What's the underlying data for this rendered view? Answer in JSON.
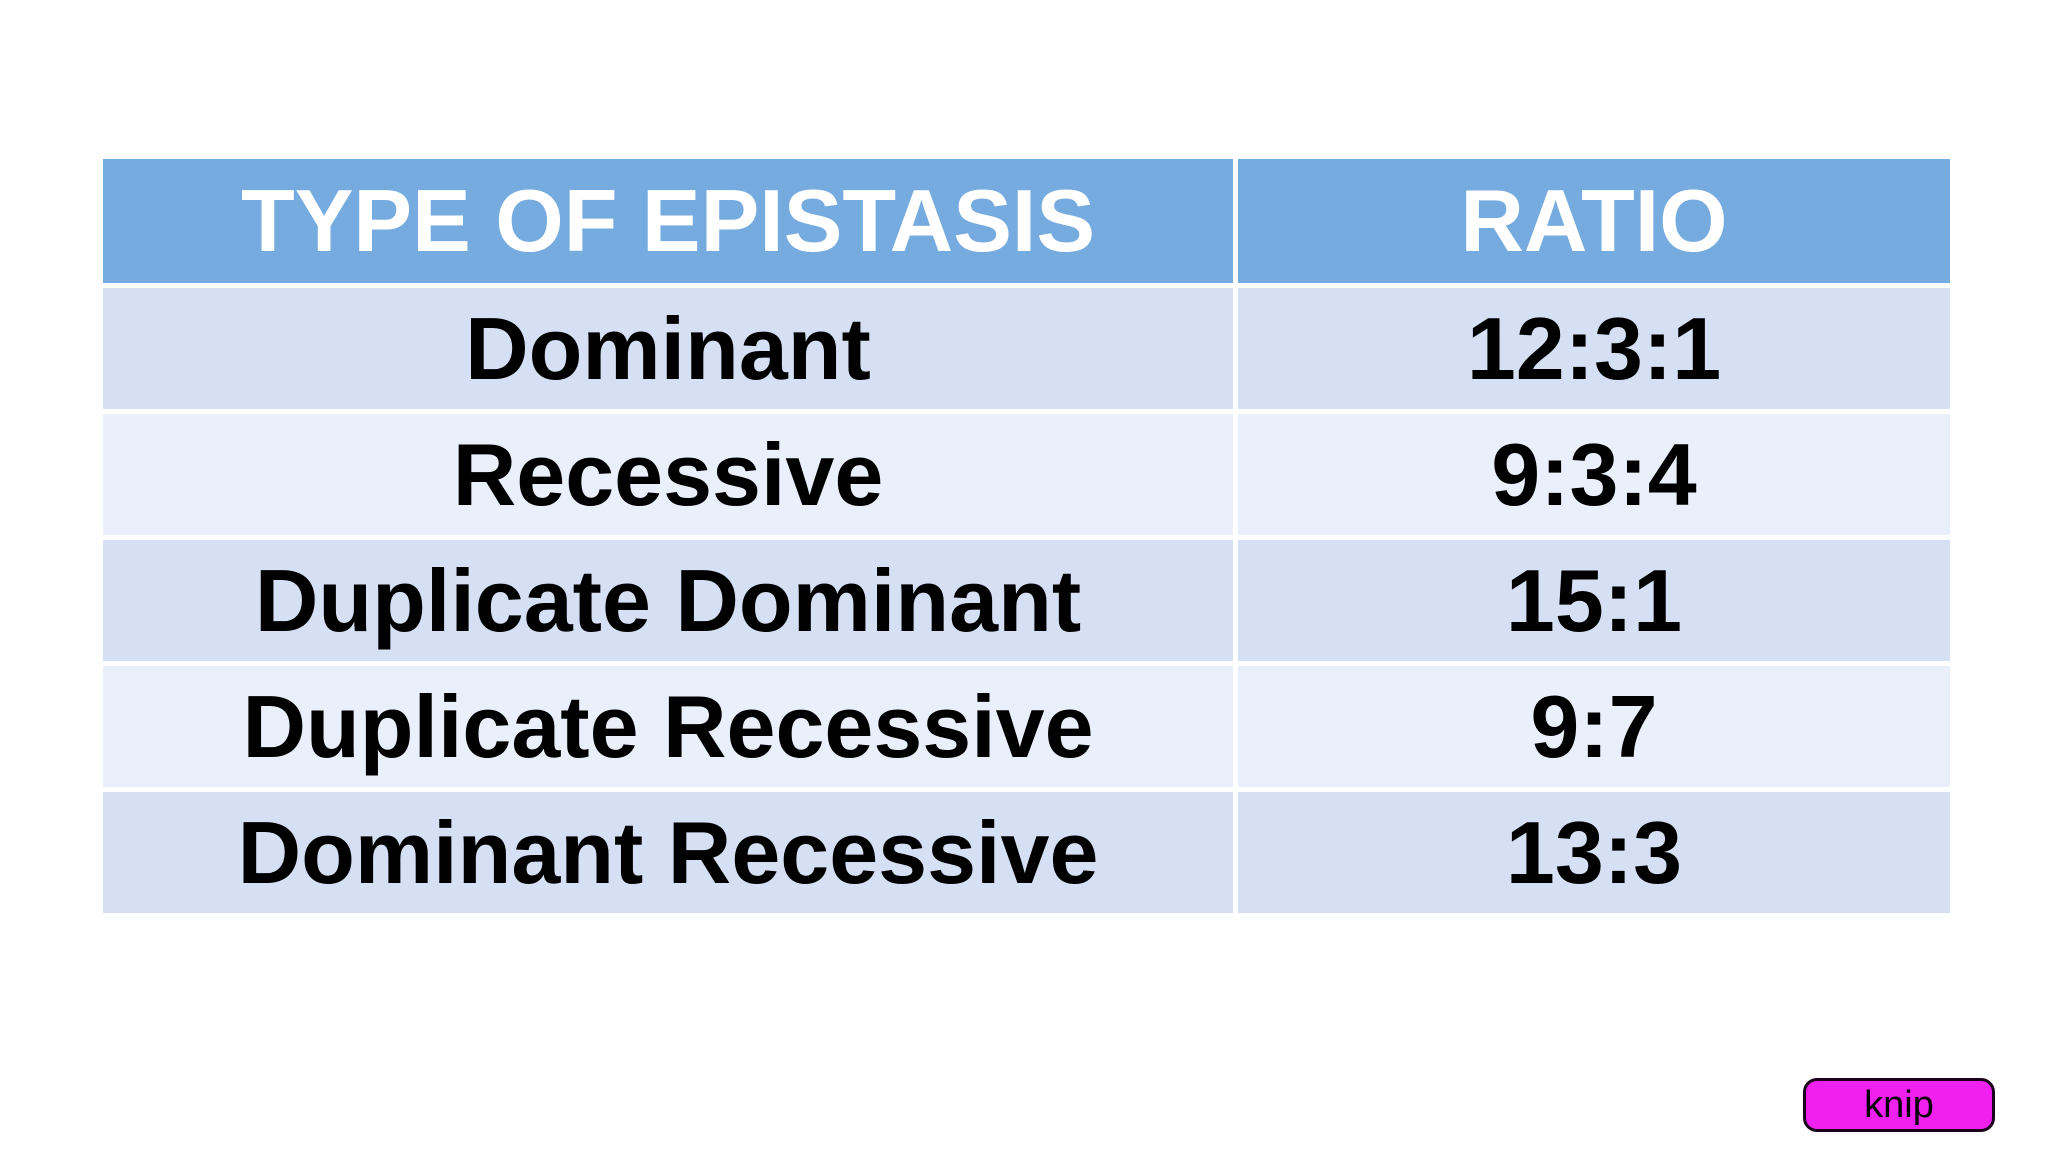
{
  "table": {
    "headers": {
      "type": "TYPE OF EPISTASIS",
      "ratio": "RATIO"
    },
    "rows": [
      {
        "type": "Dominant",
        "ratio": "12:3:1"
      },
      {
        "type": "Recessive",
        "ratio": "9:3:4"
      },
      {
        "type": "Duplicate Dominant",
        "ratio": "15:1"
      },
      {
        "type": "Duplicate Recessive",
        "ratio": "9:7"
      },
      {
        "type": "Dominant Recessive",
        "ratio": "13:3"
      }
    ]
  },
  "watermark": {
    "label": "knip"
  },
  "colors": {
    "canvas_bg": "#ffffff",
    "header_bg": "#76abe0",
    "header_text": "#ffffff",
    "row_band_dark": "#d5e0f5",
    "row_band_light": "#eaf0fb",
    "body_text": "#000000",
    "watermark_bg": "#f021f0",
    "watermark_border": "#1b031b"
  }
}
